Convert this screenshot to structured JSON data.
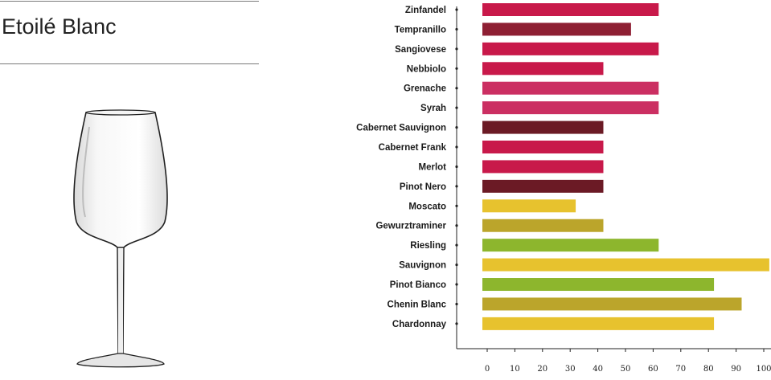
{
  "product": {
    "name": "Etoilé Blanc"
  },
  "icons": {
    "glass": "wine-glass-icon"
  },
  "chart_data": {
    "type": "bar",
    "orientation": "horizontal",
    "categories": [
      "Zinfandel",
      "Tempranillo",
      "Sangiovese",
      "Nebbiolo",
      "Grenache",
      "Syrah",
      "Cabernet Sauvignon",
      "Cabernet Frank",
      "Merlot",
      "Pinot Nero",
      "Moscato",
      "Gewurztraminer",
      "Riesling",
      "Sauvignon",
      "Pinot Bianco",
      "Chenin Blanc",
      "Chardonnay"
    ],
    "values": [
      62,
      52,
      62,
      42,
      62,
      62,
      42,
      42,
      42,
      42,
      32,
      42,
      62,
      102,
      82,
      92,
      82
    ],
    "colors": [
      "#c8194a",
      "#8e1f33",
      "#c8194a",
      "#c8194a",
      "#cb2f62",
      "#cb2f62",
      "#6b1a25",
      "#c8194a",
      "#c8194a",
      "#6b1a25",
      "#e7c22e",
      "#bba52b",
      "#8db62d",
      "#e7c22e",
      "#8db62d",
      "#bba52b",
      "#e7c22e"
    ],
    "xticks": [
      0,
      10,
      20,
      30,
      40,
      50,
      60,
      70,
      80,
      90,
      100
    ],
    "xlim": [
      -10,
      104
    ],
    "title": "",
    "xlabel": "",
    "ylabel": "",
    "grid": false,
    "legend": "none"
  }
}
